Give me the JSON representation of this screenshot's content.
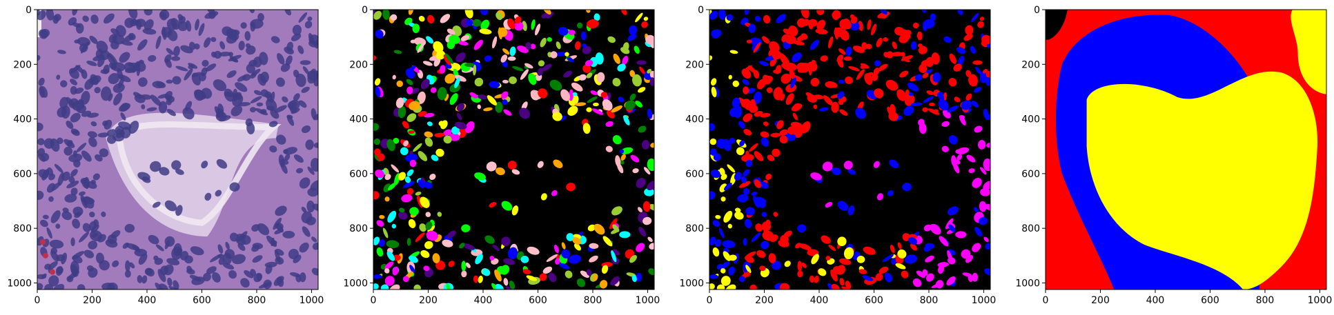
{
  "figure": {
    "panels": [
      {
        "name": "he-image",
        "kind": "tissue",
        "x_ticks": [
          "0",
          "200",
          "400",
          "600",
          "800",
          "1000"
        ],
        "y_ticks": [
          "0",
          "200",
          "400",
          "600",
          "800",
          "1000"
        ]
      },
      {
        "name": "instance-mask",
        "kind": "instances",
        "x_ticks": [
          "0",
          "200",
          "400",
          "600",
          "800",
          "1000"
        ],
        "y_ticks": [
          "0",
          "200",
          "400",
          "600",
          "800",
          "1000"
        ]
      },
      {
        "name": "type-mask",
        "kind": "types",
        "x_ticks": [
          "0",
          "200",
          "400",
          "600",
          "800",
          "1000"
        ],
        "y_ticks": [
          "0",
          "200",
          "400",
          "600",
          "800",
          "1000"
        ]
      },
      {
        "name": "region-mask",
        "kind": "regions",
        "x_ticks": [
          "0",
          "200",
          "400",
          "600",
          "800",
          "1000"
        ],
        "y_ticks": [
          "0",
          "200",
          "400",
          "600",
          "800",
          "1000"
        ]
      }
    ],
    "image_extent": [
      0,
      1024
    ],
    "colors": {
      "mask_background": "#000000",
      "tissue_background": "#a27bbd",
      "tissue_nucleus": "#3f3c86",
      "tissue_lumen": "#efe8f1",
      "type_colors": [
        "#ff0000",
        "#0000ff",
        "#ffff00",
        "#ff00ff"
      ],
      "instance_colors": [
        "#ff0000",
        "#0000ff",
        "#ffff00",
        "#ff00ff",
        "#00ffff",
        "#00ff00",
        "#008000",
        "#ffa500",
        "#ffc0cb",
        "#4b0082",
        "#9acd32",
        "#ffb6c1"
      ],
      "region_colors": [
        "#ff0000",
        "#0000ff",
        "#ffff00",
        "#000000"
      ]
    }
  }
}
